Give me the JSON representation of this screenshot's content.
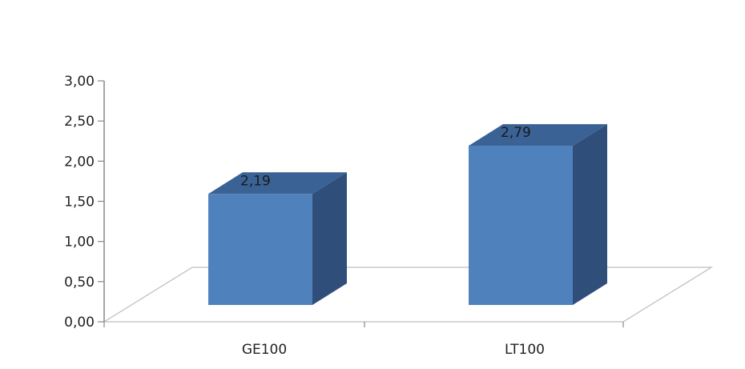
{
  "chart_data": {
    "type": "bar",
    "style": "3d-column",
    "categories": [
      "GE100",
      "LT100"
    ],
    "values": [
      2.19,
      2.79
    ],
    "data_labels": [
      "2,19",
      "2,79"
    ],
    "y_tick_labels": [
      "0,00",
      "0,50",
      "1,00",
      "1,50",
      "2,00",
      "2,50",
      "3,00"
    ],
    "ylim": [
      0,
      3
    ],
    "title": "",
    "xlabel": "",
    "ylabel": "",
    "grid": false,
    "legend": "none",
    "colors": {
      "bar_front": "#4f81bd",
      "bar_top": "#3a6295",
      "bar_side": "#2f4f7a",
      "axis": "#888888",
      "floor": "#bdbdbd"
    }
  }
}
